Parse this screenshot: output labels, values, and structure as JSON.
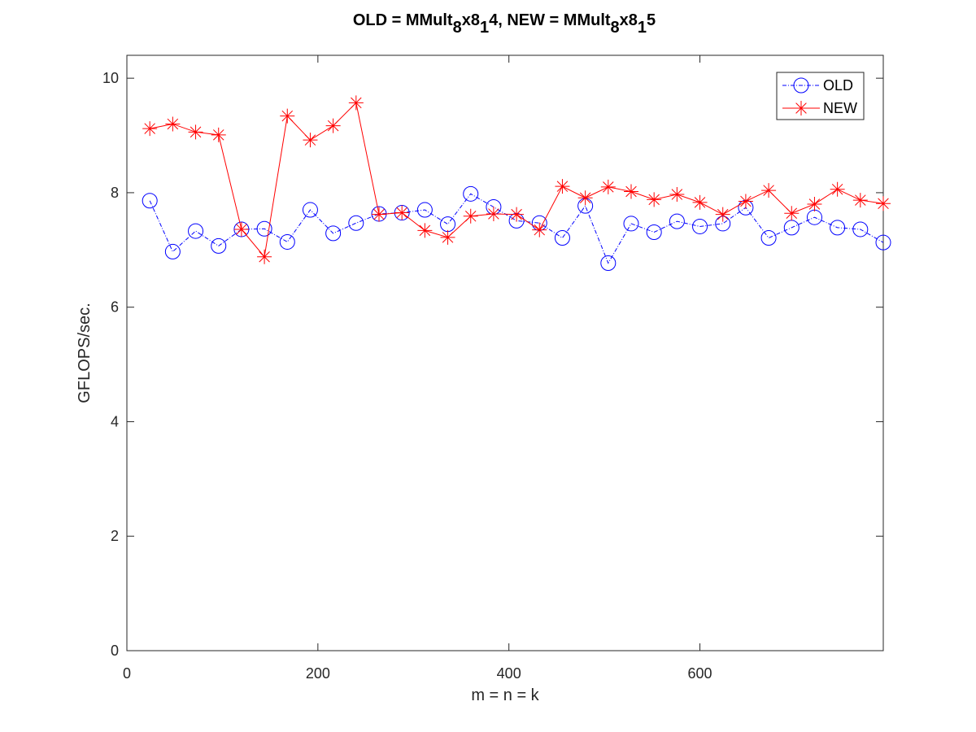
{
  "chart_data": {
    "type": "line",
    "title": {
      "parts": [
        {
          "text": "OLD = MMult",
          "sub": false
        },
        {
          "text": "8",
          "sub": true
        },
        {
          "text": "x8",
          "sub": false
        },
        {
          "text": "1",
          "sub": true
        },
        {
          "text": "4, NEW = MMult",
          "sub": false
        },
        {
          "text": "8",
          "sub": true
        },
        {
          "text": "x8",
          "sub": false
        },
        {
          "text": "1",
          "sub": true
        },
        {
          "text": "5",
          "sub": false
        }
      ]
    },
    "xlabel": "m = n = k",
    "ylabel": "GFLOPS/sec.",
    "xlim": [
      0,
      792
    ],
    "ylim": [
      0,
      10.4
    ],
    "xticks": [
      0,
      200,
      400,
      600
    ],
    "yticks": [
      0,
      2,
      4,
      6,
      8,
      10
    ],
    "legend_position": "top-right",
    "x": [
      24,
      48,
      72,
      96,
      120,
      144,
      168,
      192,
      216,
      240,
      264,
      288,
      312,
      336,
      360,
      384,
      408,
      432,
      456,
      480,
      504,
      528,
      552,
      576,
      600,
      624,
      648,
      672,
      696,
      720,
      744,
      768,
      792
    ],
    "series": [
      {
        "name": "OLD",
        "color": "#0000ff",
        "marker": "circle",
        "line_style": "dash-dot",
        "values": [
          7.86,
          6.97,
          7.33,
          7.07,
          7.36,
          7.37,
          7.14,
          7.7,
          7.29,
          7.47,
          7.63,
          7.65,
          7.7,
          7.45,
          7.98,
          7.75,
          7.51,
          7.47,
          7.21,
          7.77,
          6.77,
          7.46,
          7.31,
          7.5,
          7.41,
          7.46,
          7.74,
          7.21,
          7.39,
          7.57,
          7.39,
          7.36,
          7.13
        ]
      },
      {
        "name": "NEW",
        "color": "#ff0000",
        "marker": "asterisk",
        "line_style": "solid",
        "values": [
          9.12,
          9.2,
          9.06,
          9.01,
          7.36,
          6.88,
          9.34,
          8.92,
          9.17,
          9.57,
          7.62,
          7.65,
          7.34,
          7.22,
          7.59,
          7.63,
          7.62,
          7.35,
          8.11,
          7.91,
          8.1,
          8.02,
          7.88,
          7.97,
          7.83,
          7.62,
          7.85,
          8.04,
          7.64,
          7.8,
          8.06,
          7.87,
          7.81
        ]
      }
    ]
  }
}
